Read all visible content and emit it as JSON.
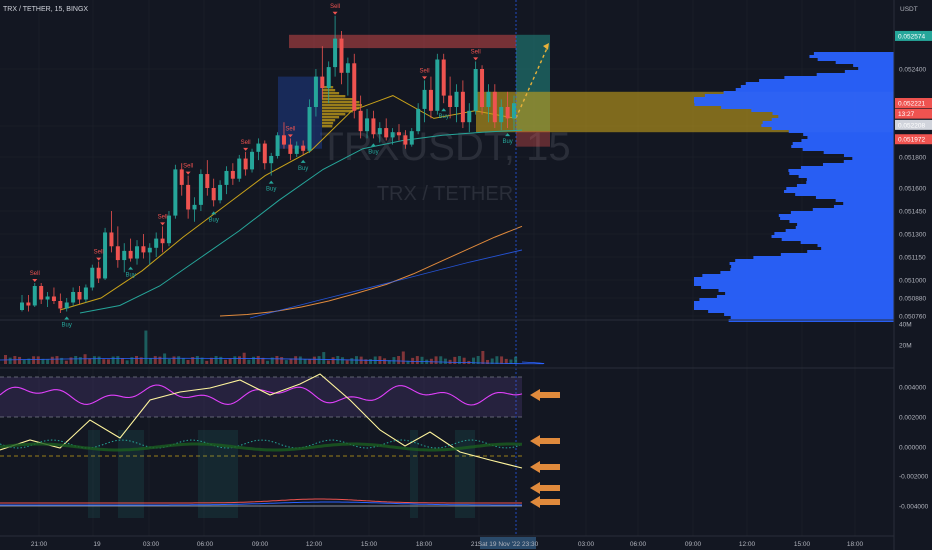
{
  "header": {
    "symbol_line": "TRX / TETHER, 15, BINGX",
    "unit": "USDT"
  },
  "watermark": {
    "ticker": "TRXUSDT, 15",
    "name": "TRX / TETHER"
  },
  "colors": {
    "bg": "#131722",
    "up": "#26a69a",
    "down": "#ef5350",
    "grid": "#1e222d",
    "volume_profile": "#2962ff",
    "zone": "#c8a21a",
    "arrow": "#e08a3c"
  },
  "price_axis": {
    "ticks": [
      "0.052400",
      "0.052100",
      "0.051800",
      "0.051600",
      "0.051450",
      "0.051300",
      "0.051150",
      "0.051000",
      "0.050880",
      "0.050760"
    ]
  },
  "price_tags": [
    {
      "label": "0.052574",
      "price": 0.052574,
      "color": "#26a69a"
    },
    {
      "label": "0.052221",
      "price": 0.052221,
      "color": "#ef5350"
    },
    {
      "label": "13:27",
      "price": 0.052165,
      "color": "#ef5350"
    },
    {
      "label": "0.052208",
      "price": 0.052106,
      "color": "#d1d4dc"
    },
    {
      "label": "0.051972",
      "price": 0.051972,
      "color": "#ef5350"
    }
  ],
  "volume_axis": {
    "ticks": [
      "40M",
      "20M"
    ]
  },
  "osc_axis": {
    "ticks": [
      "0.004000",
      "0.002000",
      "0.000000",
      "-0.002000",
      "-0.004000"
    ]
  },
  "time_axis": {
    "ticks": [
      "21:00",
      "19",
      "03:00",
      "06:00",
      "09:00",
      "12:00",
      "15:00",
      "18:00",
      "21:00",
      "03:00",
      "06:00",
      "09:00",
      "12:00",
      "15:00",
      "18:00"
    ],
    "cursor_label": "Sat 19 Nov '22 23:30"
  },
  "signals": [
    "Sell",
    "Buy"
  ],
  "chart_data": {
    "type": "candlestick",
    "interval": "15",
    "ylim": [
      0.05076,
      0.0527
    ],
    "price_scale": [
      {
        "price": 0.0524,
        "y": 69
      },
      {
        "price": 0.0521,
        "y": 126
      },
      {
        "price": 0.0518,
        "y": 157
      },
      {
        "price": 0.0516,
        "y": 188
      },
      {
        "price": 0.05145,
        "y": 211
      },
      {
        "price": 0.0513,
        "y": 234
      },
      {
        "price": 0.05115,
        "y": 257
      },
      {
        "price": 0.051,
        "y": 280
      },
      {
        "price": 0.05088,
        "y": 298
      },
      {
        "price": 0.05076,
        "y": 316
      }
    ],
    "candles": [
      [
        0.0508,
        0.0509,
        0.05079,
        0.05085
      ],
      [
        0.05085,
        0.0509,
        0.05079,
        0.05083
      ],
      [
        0.05083,
        0.05098,
        0.05082,
        0.05096
      ],
      [
        0.05096,
        0.05098,
        0.05084,
        0.05087
      ],
      [
        0.05087,
        0.05092,
        0.05082,
        0.05089
      ],
      [
        0.05089,
        0.05095,
        0.05084,
        0.05086
      ],
      [
        0.05086,
        0.05091,
        0.05078,
        0.05081
      ],
      [
        0.05081,
        0.05088,
        0.05079,
        0.05085
      ],
      [
        0.05085,
        0.05095,
        0.05083,
        0.05092
      ],
      [
        0.05092,
        0.05096,
        0.05084,
        0.05087
      ],
      [
        0.05087,
        0.05097,
        0.05085,
        0.05095
      ],
      [
        0.05095,
        0.0511,
        0.05093,
        0.05108
      ],
      [
        0.05108,
        0.05112,
        0.05098,
        0.05101
      ],
      [
        0.05101,
        0.05134,
        0.051,
        0.05131
      ],
      [
        0.05131,
        0.05145,
        0.05118,
        0.05122
      ],
      [
        0.05122,
        0.05135,
        0.05108,
        0.05113
      ],
      [
        0.05113,
        0.05124,
        0.05105,
        0.05119
      ],
      [
        0.05119,
        0.05127,
        0.05112,
        0.05114
      ],
      [
        0.05114,
        0.05126,
        0.0511,
        0.05122
      ],
      [
        0.05122,
        0.0513,
        0.05114,
        0.05118
      ],
      [
        0.05118,
        0.05124,
        0.0511,
        0.05121
      ],
      [
        0.05121,
        0.05131,
        0.05115,
        0.05127
      ],
      [
        0.05127,
        0.05135,
        0.05118,
        0.05124
      ],
      [
        0.05124,
        0.05145,
        0.05122,
        0.05142
      ],
      [
        0.05142,
        0.05175,
        0.0514,
        0.05172
      ],
      [
        0.05172,
        0.05176,
        0.05155,
        0.05162
      ],
      [
        0.05162,
        0.05168,
        0.0514,
        0.05146
      ],
      [
        0.05146,
        0.05154,
        0.05138,
        0.05149
      ],
      [
        0.05149,
        0.05172,
        0.05145,
        0.05169
      ],
      [
        0.05169,
        0.05178,
        0.05155,
        0.0516
      ],
      [
        0.0516,
        0.05166,
        0.05148,
        0.05152
      ],
      [
        0.05152,
        0.05165,
        0.0515,
        0.05162
      ],
      [
        0.05162,
        0.05174,
        0.05156,
        0.05171
      ],
      [
        0.05171,
        0.05176,
        0.05162,
        0.05166
      ],
      [
        0.05166,
        0.05182,
        0.05164,
        0.05179
      ],
      [
        0.05179,
        0.05185,
        0.05168,
        0.05172
      ],
      [
        0.05172,
        0.05188,
        0.0517,
        0.05185
      ],
      [
        0.05185,
        0.05198,
        0.05178,
        0.05193
      ],
      [
        0.05193,
        0.05196,
        0.05172,
        0.05176
      ],
      [
        0.05176,
        0.05184,
        0.05168,
        0.05181
      ],
      [
        0.05181,
        0.05204,
        0.05179,
        0.05201
      ],
      [
        0.05201,
        0.05212,
        0.05188,
        0.05192
      ],
      [
        0.05192,
        0.05198,
        0.05178,
        0.05183
      ],
      [
        0.05183,
        0.05195,
        0.0518,
        0.05191
      ],
      [
        0.05191,
        0.05196,
        0.05182,
        0.05186
      ],
      [
        0.05186,
        0.05224,
        0.05184,
        0.0522
      ],
      [
        0.0522,
        0.0524,
        0.05215,
        0.05236
      ],
      [
        0.05236,
        0.05252,
        0.05224,
        0.0523
      ],
      [
        0.0523,
        0.05244,
        0.05222,
        0.05241
      ],
      [
        0.05241,
        0.05268,
        0.05236,
        0.05256
      ],
      [
        0.05256,
        0.0526,
        0.05232,
        0.05238
      ],
      [
        0.05238,
        0.05246,
        0.05226,
        0.05243
      ],
      [
        0.05243,
        0.05248,
        0.05214,
        0.05218
      ],
      [
        0.05218,
        0.05226,
        0.05198,
        0.05205
      ],
      [
        0.05205,
        0.05219,
        0.05198,
        0.05214
      ],
      [
        0.05214,
        0.05218,
        0.05198,
        0.05202
      ],
      [
        0.05202,
        0.05212,
        0.05194,
        0.05208
      ],
      [
        0.05208,
        0.05214,
        0.05196,
        0.05199
      ],
      [
        0.05199,
        0.05208,
        0.05192,
        0.05204
      ],
      [
        0.05204,
        0.05211,
        0.05196,
        0.05201
      ],
      [
        0.05201,
        0.05206,
        0.05188,
        0.05192
      ],
      [
        0.05192,
        0.05208,
        0.0519,
        0.05205
      ],
      [
        0.05205,
        0.05222,
        0.05202,
        0.05219
      ],
      [
        0.05219,
        0.05234,
        0.05212,
        0.05229
      ],
      [
        0.05229,
        0.05236,
        0.05214,
        0.05218
      ],
      [
        0.05218,
        0.05248,
        0.05216,
        0.05245
      ],
      [
        0.05245,
        0.05248,
        0.05222,
        0.05226
      ],
      [
        0.05226,
        0.05236,
        0.05214,
        0.0522
      ],
      [
        0.0522,
        0.05232,
        0.05212,
        0.05228
      ],
      [
        0.05228,
        0.05234,
        0.05208,
        0.05212
      ],
      [
        0.05212,
        0.05222,
        0.05204,
        0.05218
      ],
      [
        0.05218,
        0.05244,
        0.05216,
        0.0524
      ],
      [
        0.0524,
        0.05242,
        0.05216,
        0.0522
      ],
      [
        0.0522,
        0.05232,
        0.05212,
        0.05228
      ],
      [
        0.05228,
        0.05232,
        0.05208,
        0.05212
      ],
      [
        0.05212,
        0.05224,
        0.05206,
        0.0522
      ],
      [
        0.0522,
        0.05228,
        0.05208,
        0.05214
      ],
      [
        0.05214,
        0.05226,
        0.05205,
        0.05222
      ]
    ],
    "ma_slow": [
      [
        0.05076,
        0.05077,
        0.05079,
        0.05082,
        0.05086,
        0.05091,
        0.05097,
        0.05104,
        0.05112,
        0.0512,
        0.05128,
        0.05135
      ],
      [
        0,
        0.09,
        0.18,
        0.27,
        0.36,
        0.45,
        0.55,
        0.64,
        0.73,
        0.82,
        0.91,
        1.0
      ]
    ],
    "ma_mid": [
      [
        0.05078,
        0.05083,
        0.05096,
        0.05114,
        0.05132,
        0.05152,
        0.05172,
        0.05188,
        0.05196,
        0.05201,
        0.05204,
        0.05206
      ],
      [
        0,
        0.09,
        0.18,
        0.27,
        0.36,
        0.45,
        0.55,
        0.64,
        0.73,
        0.82,
        0.91,
        1.0
      ]
    ],
    "ma_fast": [
      [
        0.0508,
        0.05088,
        0.05106,
        0.05128,
        0.05148,
        0.05168,
        0.05186,
        0.05218,
        0.05226,
        0.05214,
        0.05218,
        0.05214
      ],
      [
        0,
        0.09,
        0.18,
        0.27,
        0.36,
        0.45,
        0.55,
        0.64,
        0.73,
        0.82,
        0.91,
        1.0
      ]
    ],
    "zones": [
      {
        "name": "sell-zone",
        "from": 0.05258,
        "to": 0.05251
      },
      {
        "name": "target-zone",
        "from": 0.05258,
        "to": 0.05205
      },
      {
        "name": "supply-band",
        "from": 0.05228,
        "to": 0.05204
      }
    ],
    "signal_marks": [
      {
        "label": "Sell",
        "i": 2
      },
      {
        "label": "Buy",
        "i": 7
      },
      {
        "label": "Sell",
        "i": 12
      },
      {
        "label": "Buy",
        "i": 17
      },
      {
        "label": "Sell",
        "i": 22
      },
      {
        "label": "Sell",
        "i": 26
      },
      {
        "label": "Buy",
        "i": 30
      },
      {
        "label": "Sell",
        "i": 35
      },
      {
        "label": "Buy",
        "i": 39
      },
      {
        "label": "Sell",
        "i": 42
      },
      {
        "label": "Buy",
        "i": 44
      },
      {
        "label": "Sell",
        "i": 49
      },
      {
        "label": "Buy",
        "i": 55
      },
      {
        "label": "Sell",
        "i": 63
      },
      {
        "label": "Buy",
        "i": 66
      },
      {
        "label": "Sell",
        "i": 71
      },
      {
        "label": "Buy",
        "i": 76
      }
    ]
  }
}
